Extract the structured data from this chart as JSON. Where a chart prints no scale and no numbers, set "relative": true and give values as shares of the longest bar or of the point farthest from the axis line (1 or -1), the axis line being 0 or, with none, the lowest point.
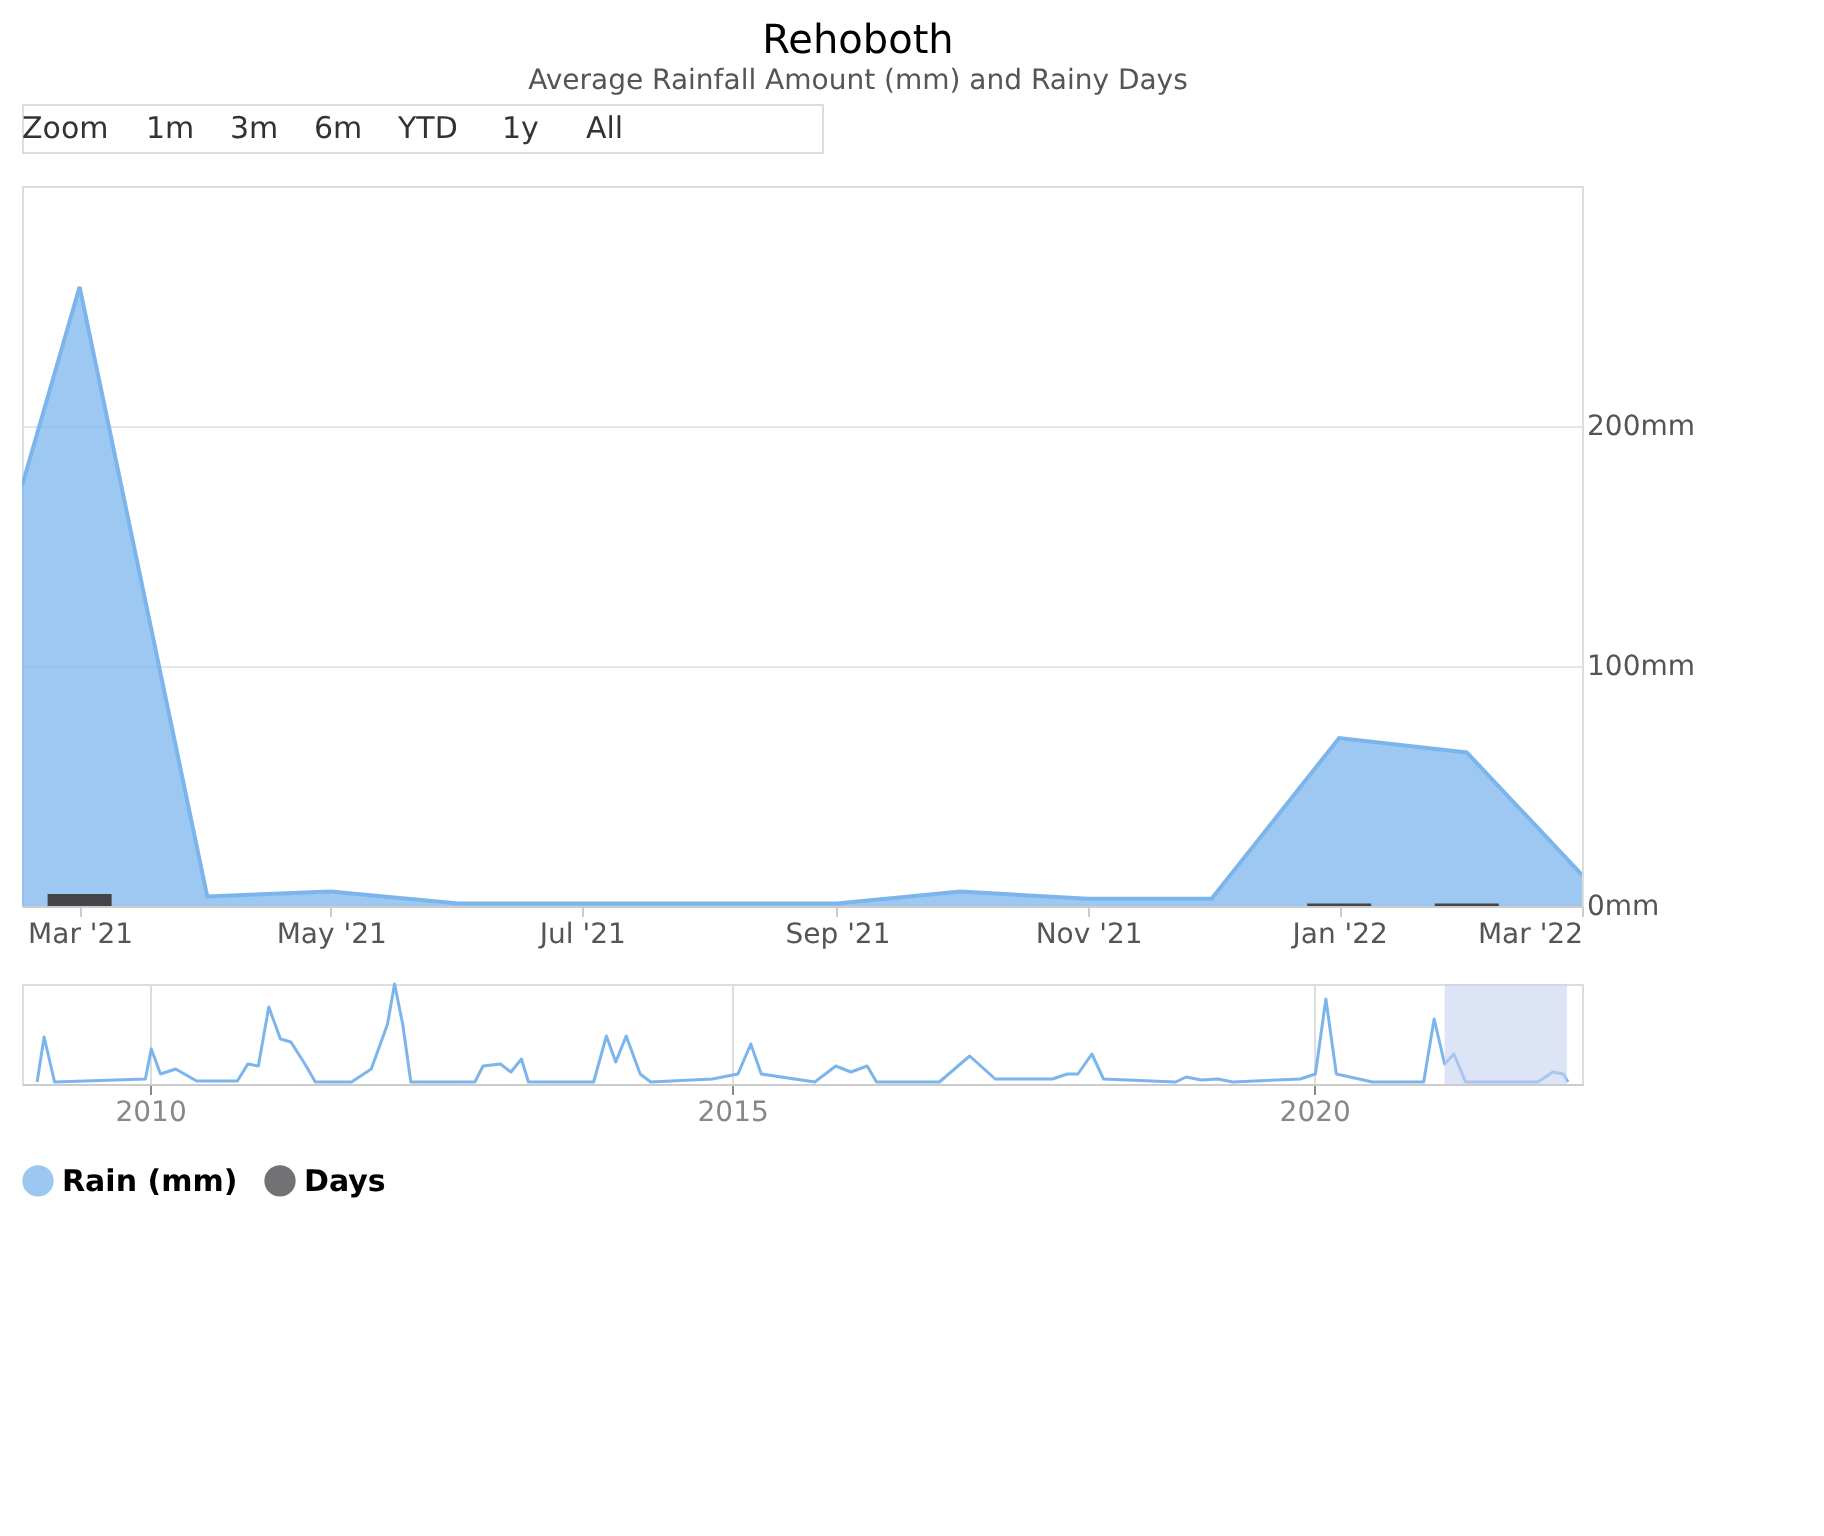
{
  "chart_data": [
    {
      "type": "area",
      "title": "Rehoboth",
      "subtitle": "Average Rainfall Amount (mm) and Rainy Days",
      "annotations": [
        "Zoom",
        "1m",
        "3m",
        "6m",
        "YTD",
        "1y",
        "All"
      ],
      "x": [
        "2021-02-15",
        "2021-03-01",
        "2021-04-01",
        "2021-05-01",
        "2021-06-01",
        "2021-07-01",
        "2021-08-01",
        "2021-09-01",
        "2021-10-01",
        "2021-11-01",
        "2021-12-01",
        "2022-01-01",
        "2022-02-01",
        "2022-03-01"
      ],
      "series": [
        {
          "name": "Rain (mm)",
          "type": "area",
          "color": "#7cb5ec",
          "values": [
            175,
            258,
            4,
            6,
            1,
            1,
            1,
            1,
            6,
            3,
            3,
            70,
            64,
            13
          ]
        },
        {
          "name": "Days",
          "type": "bar",
          "color": "#434348",
          "x": [
            "2021-03-01",
            "2022-01-01",
            "2022-02-01"
          ],
          "values": [
            5,
            1,
            1
          ]
        }
      ],
      "xlim": [
        "2021-02-15",
        "2022-03-01"
      ],
      "xticks": [
        {
          "value": "2021-03-01",
          "label": "Mar '21"
        },
        {
          "value": "2021-05-01",
          "label": "May '21"
        },
        {
          "value": "2021-07-01",
          "label": "Jul '21"
        },
        {
          "value": "2021-09-01",
          "label": "Sep '21"
        },
        {
          "value": "2021-11-01",
          "label": "Nov '21"
        },
        {
          "value": "2022-01-01",
          "label": "Jan '22"
        },
        {
          "value": "2022-03-01",
          "label": "Mar '22"
        }
      ],
      "ylim": [
        0,
        300
      ],
      "yticks": [
        {
          "value": 0,
          "label": "0mm"
        },
        {
          "value": 100,
          "label": "100mm"
        },
        {
          "value": 200,
          "label": "200mm"
        }
      ],
      "grid": "y",
      "legend": "bottom"
    },
    {
      "type": "line",
      "relative": true,
      "color": "#7cb5ec",
      "grid": "x",
      "xlim": [
        2008.9,
        2022.3
      ],
      "xticks": [
        2010,
        2015,
        2020
      ],
      "bands": [
        {
          "axis": "x",
          "from": 2021.12,
          "to": 2022.17,
          "color": "#c6d2f0"
        }
      ],
      "x": [
        2009.03,
        2009.09,
        2009.18,
        2009.96,
        2010.01,
        2010.09,
        2010.22,
        2010.4,
        2010.75,
        2010.84,
        2010.93,
        2011.02,
        2011.12,
        2011.21,
        2011.33,
        2011.42,
        2011.73,
        2011.9,
        2012.04,
        2012.1,
        2012.17,
        2012.24,
        2012.79,
        2012.86,
        2013.01,
        2013.1,
        2013.19,
        2013.25,
        2013.81,
        2013.92,
        2014.0,
        2014.09,
        2014.21,
        2014.3,
        2014.83,
        2015.05,
        2015.16,
        2015.25,
        2015.71,
        2015.89,
        2016.02,
        2016.16,
        2016.24,
        2016.78,
        2017.04,
        2017.26,
        2017.75,
        2017.88,
        2017.97,
        2018.09,
        2018.19,
        2018.81,
        2018.9,
        2019.03,
        2019.17,
        2019.3,
        2019.88,
        2020.01,
        2020.1,
        2020.19,
        2020.5,
        2020.94,
        2021.03,
        2021.12,
        2021.2,
        2021.3,
        2021.92,
        2022.05,
        2022.14,
        2022.18
      ],
      "values": [
        0.02,
        0.47,
        0.02,
        0.05,
        0.35,
        0.1,
        0.15,
        0.03,
        0.03,
        0.2,
        0.18,
        0.77,
        0.45,
        0.42,
        0.2,
        0.02,
        0.02,
        0.15,
        0.6,
        1.0,
        0.6,
        0.02,
        0.02,
        0.18,
        0.2,
        0.12,
        0.25,
        0.02,
        0.02,
        0.48,
        0.22,
        0.48,
        0.1,
        0.02,
        0.05,
        0.1,
        0.4,
        0.1,
        0.02,
        0.18,
        0.12,
        0.18,
        0.02,
        0.02,
        0.28,
        0.05,
        0.05,
        0.1,
        0.1,
        0.3,
        0.05,
        0.02,
        0.07,
        0.04,
        0.05,
        0.02,
        0.05,
        0.1,
        0.85,
        0.1,
        0.02,
        0.02,
        0.65,
        0.2,
        0.3,
        0.02,
        0.02,
        0.12,
        0.1,
        0.02
      ]
    }
  ]
}
